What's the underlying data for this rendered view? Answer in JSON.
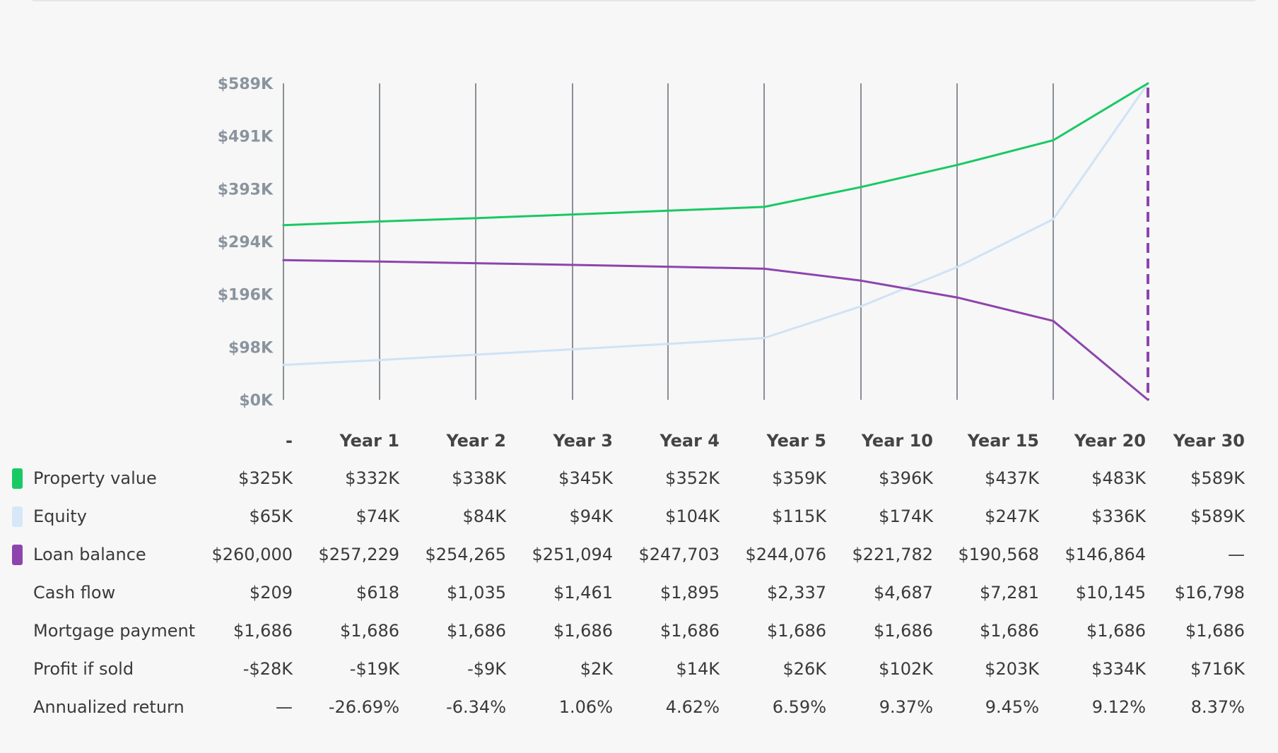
{
  "chart_data": {
    "type": "line",
    "categories": [
      "-",
      "Year 1",
      "Year 2",
      "Year 3",
      "Year 4",
      "Year 5",
      "Year 10",
      "Year 15",
      "Year 20",
      "Year 30"
    ],
    "y_ticks": [
      "$589K",
      "$491K",
      "$393K",
      "$294K",
      "$196K",
      "$98K",
      "$0K"
    ],
    "ylim": [
      0,
      589
    ],
    "series": [
      {
        "name": "Property value",
        "color": "#18c964",
        "values": [
          325,
          332,
          338,
          345,
          352,
          359,
          396,
          437,
          483,
          589
        ]
      },
      {
        "name": "Equity",
        "color": "#cfe3f6",
        "values": [
          65,
          74,
          84,
          94,
          104,
          115,
          174,
          247,
          336,
          589
        ]
      },
      {
        "name": "Loan balance",
        "color": "#8e44ad",
        "values": [
          260,
          257.229,
          254.265,
          251.094,
          247.703,
          244.076,
          221.782,
          190.568,
          146.864,
          0
        ]
      }
    ],
    "highlight_color": "#8e44ad"
  },
  "table": {
    "header": [
      "-",
      "Year 1",
      "Year 2",
      "Year 3",
      "Year 4",
      "Year 5",
      "Year 10",
      "Year 15",
      "Year 20",
      "Year 30"
    ],
    "rows": [
      {
        "label": "Property value",
        "color": "#18c964",
        "values": [
          "$325K",
          "$332K",
          "$338K",
          "$345K",
          "$352K",
          "$359K",
          "$396K",
          "$437K",
          "$483K",
          "$589K"
        ]
      },
      {
        "label": "Equity",
        "color": "#d6e7f7",
        "values": [
          "$65K",
          "$74K",
          "$84K",
          "$94K",
          "$104K",
          "$115K",
          "$174K",
          "$247K",
          "$336K",
          "$589K"
        ]
      },
      {
        "label": "Loan balance",
        "color": "#8e44ad",
        "values": [
          "$260,000",
          "$257,229",
          "$254,265",
          "$251,094",
          "$247,703",
          "$244,076",
          "$221,782",
          "$190,568",
          "$146,864",
          "—"
        ]
      },
      {
        "label": "Cash flow",
        "color": "",
        "values": [
          "$209",
          "$618",
          "$1,035",
          "$1,461",
          "$1,895",
          "$2,337",
          "$4,687",
          "$7,281",
          "$10,145",
          "$16,798"
        ]
      },
      {
        "label": "Mortgage payment",
        "color": "",
        "values": [
          "$1,686",
          "$1,686",
          "$1,686",
          "$1,686",
          "$1,686",
          "$1,686",
          "$1,686",
          "$1,686",
          "$1,686",
          "$1,686"
        ]
      },
      {
        "label": "Profit if sold",
        "color": "",
        "values": [
          "-$28K",
          "-$19K",
          "-$9K",
          "$2K",
          "$14K",
          "$26K",
          "$102K",
          "$203K",
          "$334K",
          "$716K"
        ]
      },
      {
        "label": "Annualized return",
        "color": "",
        "values": [
          "—",
          "-26.69%",
          "-6.34%",
          "1.06%",
          "4.62%",
          "6.59%",
          "9.37%",
          "9.45%",
          "9.12%",
          "8.37%"
        ]
      }
    ]
  }
}
